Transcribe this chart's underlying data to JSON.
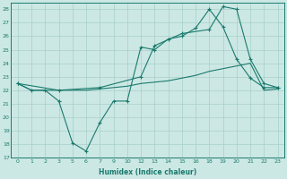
{
  "xlabel": "Humidex (Indice chaleur)",
  "bg_color": "#cce8e4",
  "grid_color": "#a8cfc8",
  "line_color": "#1a7a6e",
  "xtick_labels": [
    "0",
    "1",
    "2",
    "3",
    "5",
    "6",
    "7",
    "9",
    "10",
    "12",
    "13",
    "14",
    "15",
    "16",
    "18",
    "19",
    "20",
    "21",
    "22",
    "23"
  ],
  "yticks": [
    17,
    18,
    19,
    20,
    21,
    22,
    23,
    24,
    25,
    26,
    27,
    28
  ],
  "ylim": [
    17,
    28.5
  ],
  "line1_x": [
    0,
    1,
    2,
    3,
    4,
    5,
    6,
    7,
    8,
    9,
    10,
    11,
    12,
    13,
    14,
    15,
    16,
    17,
    18,
    19
  ],
  "line1_y": [
    22.5,
    22.0,
    22.0,
    21.2,
    18.1,
    17.5,
    19.6,
    21.2,
    21.2,
    25.2,
    25.0,
    25.8,
    26.0,
    26.6,
    28.0,
    26.7,
    24.3,
    22.9,
    22.2,
    22.2
  ],
  "line2_x": [
    0,
    1,
    2,
    3,
    4,
    5,
    6,
    7,
    8,
    9,
    10,
    11,
    12,
    13,
    14,
    15,
    16,
    17,
    18,
    19
  ],
  "line2_y": [
    22.5,
    22.0,
    22.0,
    22.0,
    22.0,
    22.0,
    22.1,
    22.2,
    22.3,
    22.5,
    22.6,
    22.7,
    22.9,
    23.1,
    23.4,
    23.6,
    23.8,
    24.0,
    22.0,
    22.1
  ],
  "line3_x": [
    0,
    3,
    6,
    9,
    10,
    12,
    14,
    15,
    16,
    17,
    18,
    19
  ],
  "line3_y": [
    22.5,
    22.0,
    22.2,
    23.0,
    25.3,
    26.2,
    26.5,
    28.2,
    28.0,
    24.3,
    22.5,
    22.2
  ]
}
